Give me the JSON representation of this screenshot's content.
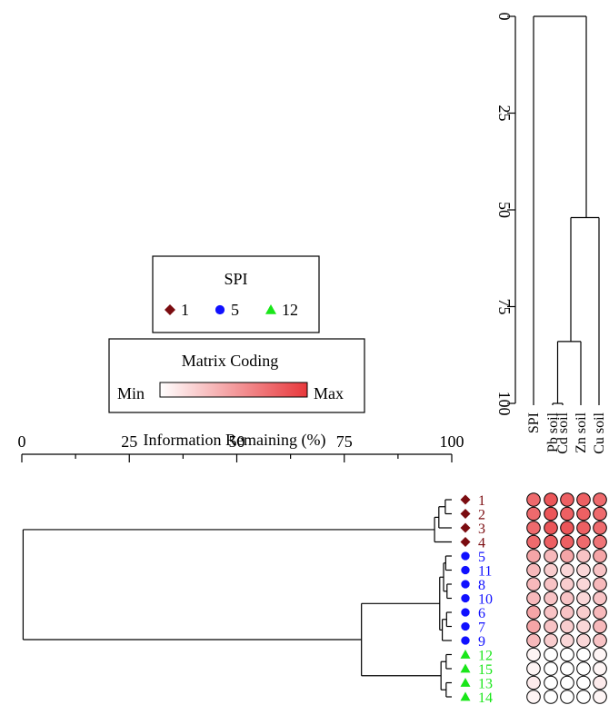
{
  "legend_spi": {
    "title": "SPI",
    "entries": [
      {
        "label": "1",
        "shape": "diamond",
        "color": "#7b0c10"
      },
      {
        "label": "5",
        "shape": "circle",
        "color": "#1010ff"
      },
      {
        "label": "12",
        "shape": "triangle",
        "color": "#19e619"
      }
    ]
  },
  "legend_matrix": {
    "title": "Matrix Coding",
    "min_label": "Min",
    "max_label": "Max",
    "color_min": "#ffffff",
    "color_max": "#e8383c"
  },
  "chart_data": [
    {
      "type": "dendrogram",
      "orientation": "vertical",
      "axis": {
        "ticks": [
          "0",
          "25",
          "50",
          "75",
          "100"
        ],
        "range": [
          0,
          100
        ]
      },
      "leaves": [
        "SPI",
        "Pb soil",
        "Cd soil",
        "Zn soil",
        "Cu soil"
      ],
      "merges": [
        {
          "left": "Pb soil",
          "right": "Cd soil",
          "height": 100
        },
        {
          "left": "Pb soil+Cd soil",
          "right": "Zn soil",
          "height": 84
        },
        {
          "left": "Pb soil+Cd soil+Zn soil",
          "right": "Cu soil",
          "height": 52
        },
        {
          "left": "SPI",
          "right": "Pb soil+Cd soil+Zn soil+Cu soil",
          "height": 0
        }
      ]
    },
    {
      "type": "dendrogram",
      "orientation": "horizontal",
      "axis": {
        "title": "Information Remaining (%)",
        "ticks": [
          "0",
          "25",
          "50",
          "75",
          "100"
        ],
        "range": [
          0,
          100
        ]
      },
      "leaves": [
        {
          "label": "1",
          "group": "1"
        },
        {
          "label": "2",
          "group": "1"
        },
        {
          "label": "3",
          "group": "1"
        },
        {
          "label": "4",
          "group": "1"
        },
        {
          "label": "5",
          "group": "5"
        },
        {
          "label": "11",
          "group": "5"
        },
        {
          "label": "8",
          "group": "5"
        },
        {
          "label": "10",
          "group": "5"
        },
        {
          "label": "6",
          "group": "5"
        },
        {
          "label": "7",
          "group": "5"
        },
        {
          "label": "9",
          "group": "5"
        },
        {
          "label": "12",
          "group": "12"
        },
        {
          "label": "15",
          "group": "12"
        },
        {
          "label": "13",
          "group": "12"
        },
        {
          "label": "14",
          "group": "12"
        }
      ]
    },
    {
      "type": "heatmap",
      "columns": [
        "SPI",
        "Pb soil",
        "Cd soil",
        "Zn soil",
        "Cu soil"
      ],
      "rows": [
        "1",
        "2",
        "3",
        "4",
        "5",
        "11",
        "8",
        "10",
        "6",
        "7",
        "9",
        "12",
        "15",
        "13",
        "14"
      ],
      "values": [
        [
          0.75,
          0.85,
          0.8,
          0.8,
          0.75
        ],
        [
          0.75,
          0.85,
          0.8,
          0.8,
          0.75
        ],
        [
          0.75,
          0.85,
          0.85,
          0.8,
          0.75
        ],
        [
          0.75,
          0.8,
          0.8,
          0.75,
          0.7
        ],
        [
          0.45,
          0.35,
          0.45,
          0.3,
          0.45
        ],
        [
          0.35,
          0.25,
          0.2,
          0.2,
          0.3
        ],
        [
          0.35,
          0.3,
          0.25,
          0.2,
          0.35
        ],
        [
          0.35,
          0.3,
          0.3,
          0.2,
          0.3
        ],
        [
          0.45,
          0.3,
          0.3,
          0.25,
          0.35
        ],
        [
          0.45,
          0.3,
          0.25,
          0.2,
          0.35
        ],
        [
          0.35,
          0.25,
          0.2,
          0.2,
          0.3
        ],
        [
          0.05,
          0.0,
          0.0,
          0.0,
          0.05
        ],
        [
          0.05,
          0.0,
          0.0,
          0.0,
          0.05
        ],
        [
          0.1,
          0.0,
          0.0,
          0.0,
          0.1
        ],
        [
          0.05,
          0.0,
          0.0,
          0.0,
          0.05
        ]
      ]
    }
  ]
}
